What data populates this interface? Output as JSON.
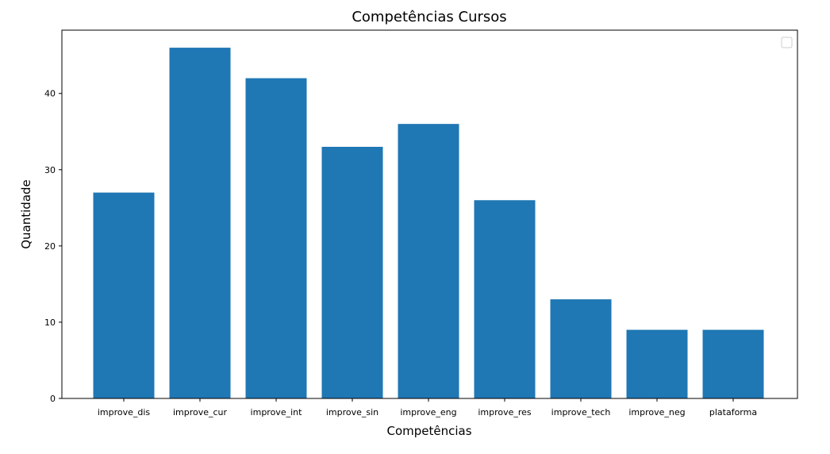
{
  "chart_data": {
    "type": "bar",
    "title": "Competências Cursos",
    "xlabel": "Competências",
    "ylabel": "Quantidade",
    "categories": [
      "improve_dis",
      "improve_cur",
      "improve_int",
      "improve_sin",
      "improve_eng",
      "improve_res",
      "improve_tech",
      "improve_neg",
      "plataforma"
    ],
    "values": [
      27,
      46,
      42,
      33,
      36,
      26,
      13,
      9,
      9
    ],
    "ylim": [
      0,
      48.3
    ],
    "yticks": [
      0,
      10,
      20,
      30,
      40
    ],
    "grid": false,
    "legend": "top-right (empty)",
    "bar_color": "#1f77b4"
  }
}
